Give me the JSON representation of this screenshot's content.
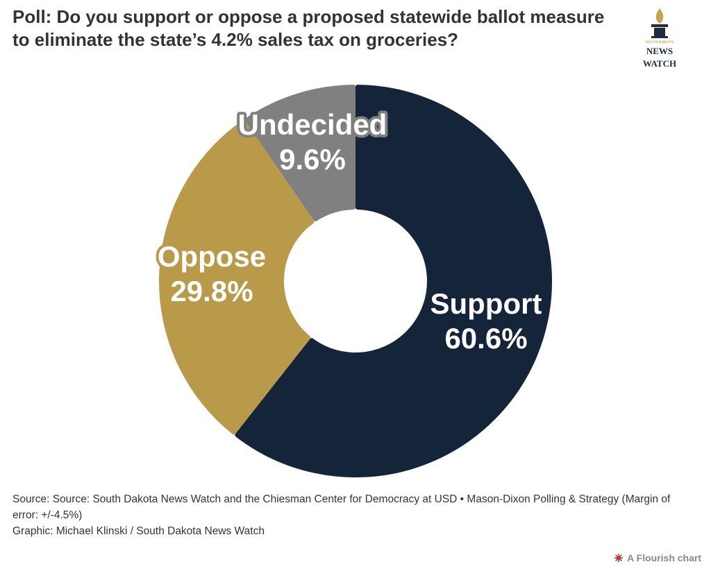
{
  "title": "Poll: Do you support or oppose a proposed statewide ballot measure to eliminate the state’s 4.2% sales tax on groceries?",
  "logo": {
    "line1": "SOUTH DAKOTA",
    "line2": "NEWS",
    "line3": "WATCH"
  },
  "chart_data": {
    "type": "pie",
    "variant": "donut",
    "slices": [
      {
        "label": "Support",
        "value": 60.6,
        "display": "60.6%",
        "color": "#14253a"
      },
      {
        "label": "Oppose",
        "value": 29.8,
        "display": "29.8%",
        "color": "#b99a48"
      },
      {
        "label": "Undecided",
        "value": 9.6,
        "display": "9.6%",
        "color": "#808080"
      }
    ]
  },
  "footer": {
    "source": "Source: Source: South Dakota News Watch and the Chiesman Center for Democracy at USD • Mason-Dixon Polling & Strategy (Margin of error: +/-4.5%)",
    "graphic": "Graphic: Michael Klinski / South Dakota News Watch"
  },
  "flourish": {
    "label": "A Flourish chart",
    "icon": "flourish-burst-icon",
    "color": "#c0392b"
  }
}
